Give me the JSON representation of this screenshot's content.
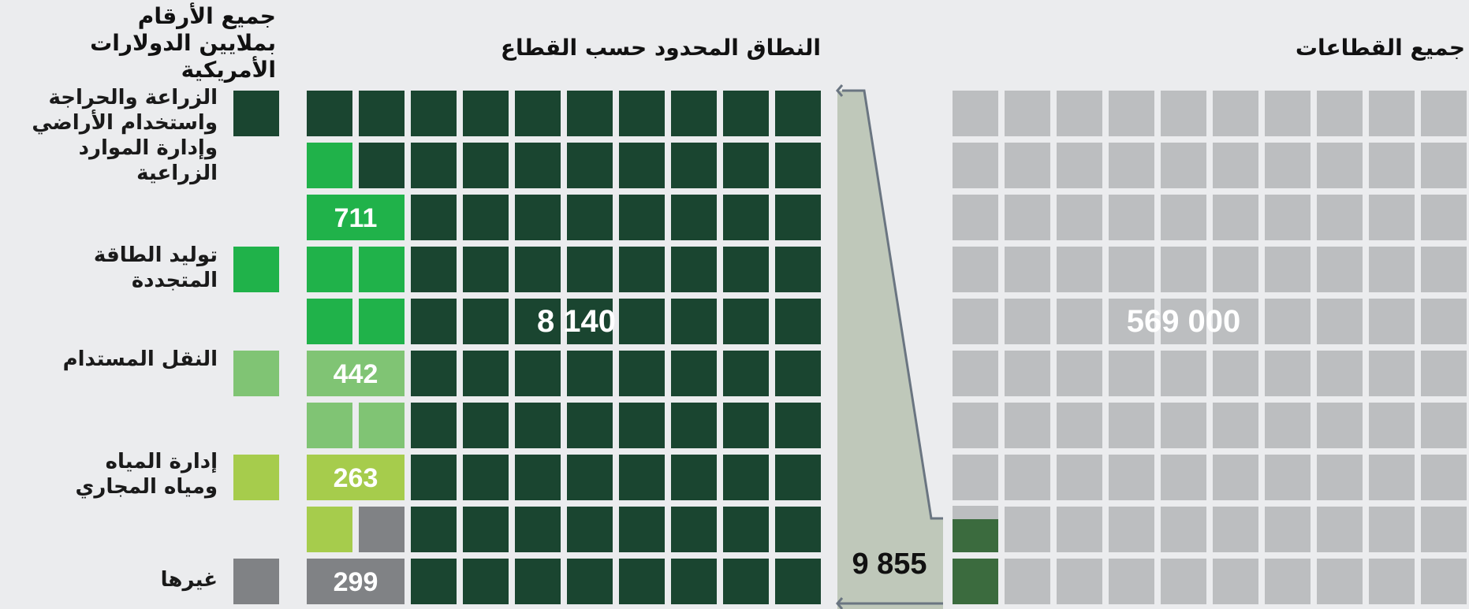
{
  "header": {
    "units_line1": "جميع الأرقام",
    "units_line2": "بملايين الدولارات الأمريكية",
    "middle_title": "النطاق المحدود حسب القطاع",
    "right_title": "جميع القطاعات"
  },
  "colors": {
    "dark_green": "#1a4530",
    "bright_green": "#20b24a",
    "light_green": "#80c474",
    "lime_green": "#a6cc4c",
    "grey": "#808285",
    "light_grey": "#bcbec0",
    "bridge": "#bfc8ba",
    "bridge_edge": "#6a7581",
    "total_highlight": "#3b6b3e"
  },
  "chart_data": {
    "type": "waffle",
    "unit": "millions of US dollars",
    "categories": [
      {
        "label": "الزراعة والحراجة واستخدام الأراضي وإدارة الموارد الزراعية",
        "value": 8140,
        "value_label": "8 140",
        "color": "#1a4530"
      },
      {
        "label": "توليد الطاقة المتجددة",
        "value": 711,
        "value_label": "711",
        "color": "#20b24a"
      },
      {
        "label": "النقل المستدام",
        "value": 442,
        "value_label": "442",
        "color": "#80c474"
      },
      {
        "label": "إدارة المياه ومياه المجاري",
        "value": 263,
        "value_label": "263",
        "color": "#a6cc4c"
      },
      {
        "label": "غيرها",
        "value": 299,
        "value_label": "299",
        "color": "#808285"
      }
    ],
    "subset_total": 9855,
    "subset_total_label": "9 855",
    "all_sectors_total": 569000,
    "all_sectors_total_label": "569 000"
  }
}
